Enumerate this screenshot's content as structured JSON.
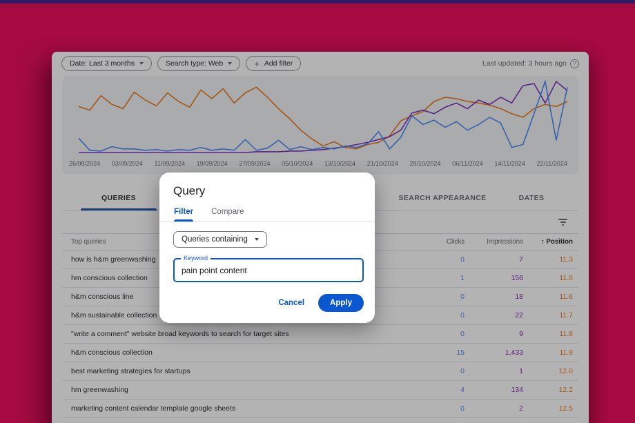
{
  "toolbar": {
    "date_chip": "Date: Last 3 months",
    "search_type_chip": "Search type: Web",
    "add_filter_plus": "+",
    "add_filter_chip": "Add filter",
    "last_updated": "Last updated: 3 hours ago",
    "help_glyph": "?"
  },
  "chart_data": {
    "type": "line",
    "x_labels": [
      "26/08/2024",
      "03/09/2024",
      "11/09/2024",
      "19/09/2024",
      "27/09/2024",
      "05/10/2024",
      "13/10/2024",
      "21/10/2024",
      "29/10/2024",
      "06/11/2024",
      "14/11/2024",
      "22/11/2024"
    ],
    "ylim": [
      0,
      100
    ],
    "grid": false,
    "legend": "none",
    "series": [
      {
        "name": "Position",
        "color": "#e8710a",
        "values": [
          65,
          60,
          80,
          68,
          62,
          85,
          74,
          66,
          84,
          72,
          64,
          88,
          76,
          90,
          70,
          84,
          92,
          78,
          62,
          48,
          32,
          20,
          10,
          16,
          8,
          6,
          12,
          15,
          24,
          45,
          52,
          58,
          72,
          78,
          76,
          72,
          70,
          67,
          62,
          55,
          50,
          62,
          68,
          65,
          72
        ]
      },
      {
        "name": "Impressions",
        "color": "#7627bb",
        "values": [
          1,
          1,
          1,
          1,
          1,
          1,
          1,
          1,
          1,
          1,
          1,
          1,
          1,
          1,
          1,
          1,
          2,
          2,
          2,
          3,
          3,
          4,
          5,
          7,
          9,
          12,
          15,
          19,
          23,
          32,
          56,
          60,
          55,
          64,
          70,
          62,
          74,
          68,
          78,
          70,
          94,
          97,
          70,
          100,
          87
        ]
      },
      {
        "name": "Clicks",
        "color": "#4285f4",
        "values": [
          21,
          4,
          3,
          9,
          6,
          6,
          4,
          5,
          3,
          5,
          4,
          8,
          4,
          6,
          4,
          19,
          4,
          7,
          18,
          5,
          9,
          5,
          8,
          6,
          10,
          8,
          13,
          30,
          6,
          22,
          52,
          40,
          46,
          36,
          44,
          32,
          40,
          50,
          42,
          8,
          12,
          55,
          100,
          18,
          92
        ]
      }
    ]
  },
  "table": {
    "tabs": [
      {
        "label": "QUERIES",
        "active": true
      },
      {
        "label": "SEARCH APPEARANCE",
        "active": false
      },
      {
        "label": "DATES",
        "active": false
      }
    ],
    "header": {
      "query": "Top queries",
      "clicks": "Clicks",
      "impressions": "Impressions",
      "position": "Position",
      "sort_arrow": "↑"
    },
    "rows": [
      {
        "query": "how is h&m greenwashing",
        "clicks": "0",
        "impressions": "7",
        "position": "11.3"
      },
      {
        "query": "hm conscious collection",
        "clicks": "1",
        "impressions": "156",
        "position": "11.6"
      },
      {
        "query": "h&m conscious line",
        "clicks": "0",
        "impressions": "18",
        "position": "11.6"
      },
      {
        "query": "h&m sustainable collection",
        "clicks": "0",
        "impressions": "22",
        "position": "11.7"
      },
      {
        "query": "\"write a comment\" website broad keywords to search for target sites",
        "clicks": "0",
        "impressions": "9",
        "position": "11.8"
      },
      {
        "query": "h&m conscious collection",
        "clicks": "15",
        "impressions": "1,433",
        "position": "11.9"
      },
      {
        "query": "best marketing strategies for startups",
        "clicks": "0",
        "impressions": "1",
        "position": "12.0"
      },
      {
        "query": "hm greenwashing",
        "clicks": "4",
        "impressions": "134",
        "position": "12.2"
      },
      {
        "query": "marketing content calendar template google sheets",
        "clicks": "0",
        "impressions": "2",
        "position": "12.5"
      }
    ]
  },
  "modal": {
    "title": "Query",
    "tabs": [
      {
        "label": "Filter",
        "active": true
      },
      {
        "label": "Compare",
        "active": false
      }
    ],
    "dropdown_value": "Queries containing",
    "keyword_label": "Keyword",
    "keyword_value": "pain point content",
    "cancel_label": "Cancel",
    "apply_label": "Apply"
  }
}
